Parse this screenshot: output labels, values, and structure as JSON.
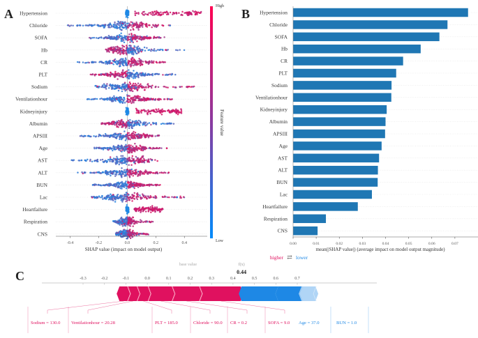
{
  "panels": {
    "a": "A",
    "b": "B",
    "c": "C"
  },
  "colors": {
    "high": "#e0115f",
    "low": "#1e88e5",
    "bar": "#1f77b4",
    "grid": "#d9d9d9",
    "axis": "#333333",
    "faint": "#bbbbbb"
  },
  "chart_data": [
    {
      "panel": "A",
      "type": "scatter",
      "subtype": "shap-beeswarm",
      "title": "",
      "xlabel": "SHAP value (impact on model output)",
      "xlim": [
        -0.5,
        0.56
      ],
      "xticks": [
        -0.4,
        -0.2,
        0.0,
        0.2,
        0.4
      ],
      "xtick_labels": [
        "-0.4",
        "-0.2",
        "0.0",
        "0.2",
        "0.4"
      ],
      "colorbar": {
        "label": "Feature value",
        "high": "High",
        "low": "Low"
      },
      "features": [
        {
          "name": "Hypertension",
          "min": -0.01,
          "max": 0.52,
          "pos_high": true,
          "mode": "split",
          "hi": [
            0.05,
            0.52
          ],
          "lo": [
            -0.01,
            0.01
          ]
        },
        {
          "name": "Chloride",
          "min": -0.42,
          "max": 0.32,
          "pos_high": true,
          "mode": "spread"
        },
        {
          "name": "SOFA",
          "min": -0.28,
          "max": 0.26,
          "pos_high": true,
          "mode": "spread"
        },
        {
          "name": "Hb",
          "min": -0.15,
          "max": 0.4,
          "pos_high": false,
          "mode": "spread"
        },
        {
          "name": "CR",
          "min": -0.35,
          "max": 0.27,
          "pos_high": true,
          "mode": "spread"
        },
        {
          "name": "PLT",
          "min": -0.27,
          "max": 0.34,
          "pos_high": false,
          "mode": "spread"
        },
        {
          "name": "Sodium",
          "min": -0.23,
          "max": 0.47,
          "pos_high": true,
          "mode": "spread"
        },
        {
          "name": "Ventilationhour",
          "min": -0.28,
          "max": 0.32,
          "pos_high": true,
          "mode": "spread"
        },
        {
          "name": "Kidneyinjury",
          "min": -0.01,
          "max": 0.38,
          "pos_high": true,
          "mode": "split",
          "hi": [
            0.06,
            0.38
          ],
          "lo": [
            -0.01,
            0.01
          ]
        },
        {
          "name": "Albumin",
          "min": -0.18,
          "max": 0.34,
          "pos_high": false,
          "mode": "spread"
        },
        {
          "name": "APSIII",
          "min": -0.33,
          "max": 0.24,
          "pos_high": true,
          "mode": "spread"
        },
        {
          "name": "Age",
          "min": -0.23,
          "max": 0.3,
          "pos_high": true,
          "mode": "spread"
        },
        {
          "name": "AST",
          "min": -0.43,
          "max": 0.22,
          "pos_high": true,
          "mode": "spread"
        },
        {
          "name": "ALT",
          "min": -0.35,
          "max": 0.29,
          "pos_high": true,
          "mode": "spread"
        },
        {
          "name": "BUN",
          "min": -0.25,
          "max": 0.23,
          "pos_high": true,
          "mode": "spread"
        },
        {
          "name": "Lac",
          "min": -0.25,
          "max": 0.41,
          "pos_high": true,
          "mode": "spread"
        },
        {
          "name": "Heartfailure",
          "min": -0.01,
          "max": 0.25,
          "pos_high": true,
          "mode": "split",
          "hi": [
            0.05,
            0.25
          ],
          "lo": [
            -0.01,
            0.01
          ]
        },
        {
          "name": "Respiration",
          "min": -0.1,
          "max": 0.2,
          "pos_high": true,
          "mode": "spread"
        },
        {
          "name": "CNS",
          "min": -0.08,
          "max": 0.16,
          "pos_high": true,
          "mode": "spread"
        }
      ]
    },
    {
      "panel": "B",
      "type": "bar",
      "orientation": "horizontal",
      "title": "",
      "xlabel": "mean(|SHAP value|) (average impact on model output magnitude)",
      "xlim": [
        0,
        0.08
      ],
      "xticks": [
        0.0,
        0.01,
        0.02,
        0.03,
        0.04,
        0.05,
        0.06,
        0.07
      ],
      "xtick_labels": [
        "0.00",
        "0.01",
        "0.02",
        "0.03",
        "0.04",
        "0.05",
        "0.06",
        "0.07"
      ],
      "categories": [
        "Hypertension",
        "Chloride",
        "SOFA",
        "Hb",
        "CR",
        "PLT",
        "Sodium",
        "Ventilationhour",
        "Kidneyinjury",
        "Albumin",
        "APSIII",
        "Age",
        "AST",
        "ALT",
        "BUN",
        "Lac",
        "Heartfailure",
        "Respiration",
        "CNS"
      ],
      "values": [
        0.0757,
        0.0668,
        0.0633,
        0.0552,
        0.0476,
        0.0446,
        0.0426,
        0.0425,
        0.0405,
        0.04,
        0.0398,
        0.0383,
        0.0372,
        0.0367,
        0.0366,
        0.0341,
        0.028,
        0.0142,
        0.0106
      ]
    },
    {
      "panel": "C",
      "type": "bar",
      "subtype": "shap-force-plot",
      "xlim": [
        -0.4,
        0.8
      ],
      "xticks": [
        -0.3,
        -0.2,
        -0.1,
        0.0,
        0.1,
        0.2,
        0.3,
        0.4,
        0.5,
        0.6,
        0.7
      ],
      "xtick_labels": [
        "-0.3",
        "-0.2",
        "-0.1",
        "0.0",
        "0.1",
        "0.2",
        "0.3",
        "0.4",
        "0.5",
        "0.6",
        "0.7"
      ],
      "legend": {
        "higher": "higher",
        "arrow": "⇄",
        "lower": "lower"
      },
      "base_value_label": "base value",
      "fx_label": "f(x)",
      "output_value": 0.44,
      "output_label": "0.44",
      "push_higher": [
        {
          "label": "Sodium = 130.0",
          "start": -0.13,
          "end": -0.0889
        },
        {
          "label": "Ventilationhour = 20.28",
          "start": -0.0889,
          "end": -0.0444
        },
        {
          "label": "PLT = 185.0",
          "start": -0.0444,
          "end": 0.0067
        },
        {
          "label": "Chloride = 90.0",
          "start": 0.0067,
          "end": 0.1189
        },
        {
          "label": "CR = 0.2",
          "start": 0.1189,
          "end": 0.2467
        },
        {
          "label": "SOFA = 9.0",
          "start": 0.2467,
          "end": 0.44
        }
      ],
      "push_lower": [
        {
          "label": "Age = 37.0",
          "start": 0.44,
          "end": 0.6111
        },
        {
          "label": "BUN = 1.0",
          "start": 0.6111,
          "end": 0.72
        },
        {
          "label": "",
          "start": 0.72,
          "end": 0.785
        }
      ]
    }
  ]
}
